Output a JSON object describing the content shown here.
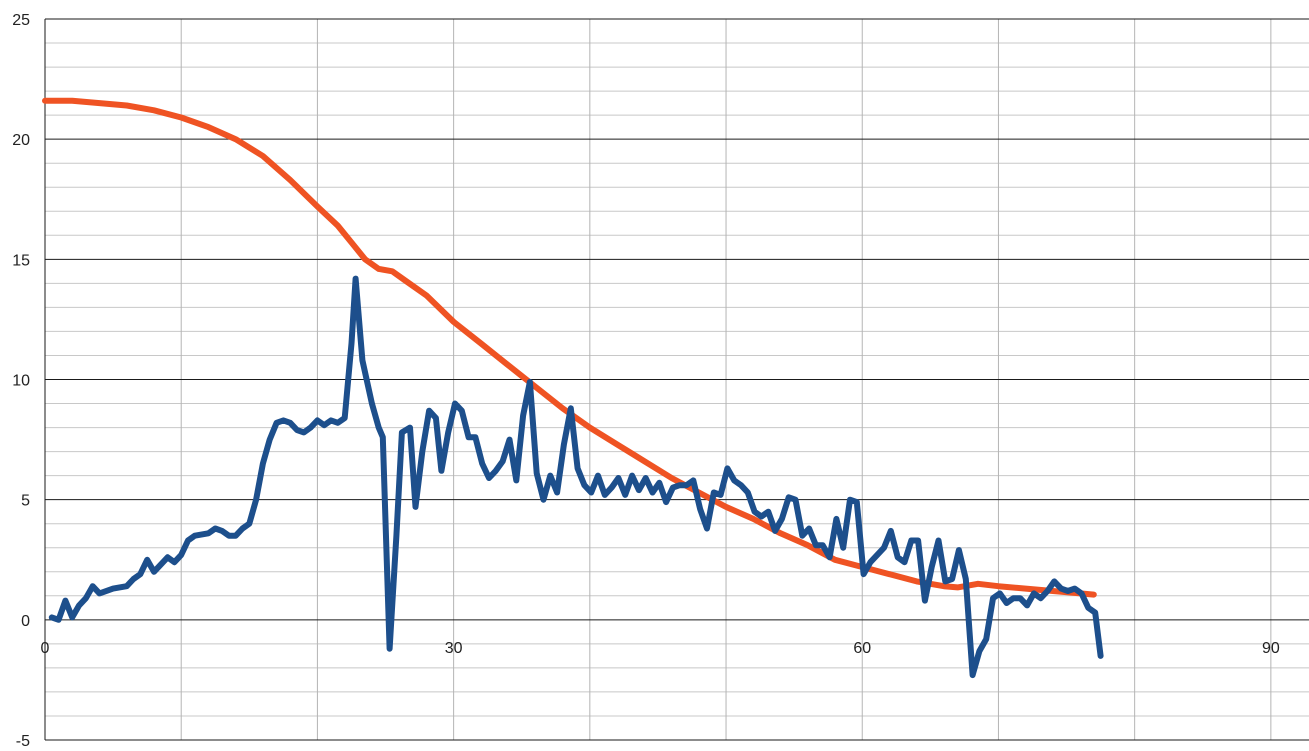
{
  "chart_data": {
    "type": "line",
    "title": "",
    "xlabel": "",
    "ylabel": "",
    "xlim": [
      0,
      92.8
    ],
    "ylim": [
      -5,
      25
    ],
    "x_ticks": [
      0,
      30,
      60,
      90
    ],
    "x_tick_labels": [
      "0",
      "30",
      "60",
      "90"
    ],
    "y_ticks": [
      -5,
      0,
      5,
      10,
      15,
      20,
      25
    ],
    "y_tick_labels": [
      "-5",
      "0",
      "5",
      "10",
      "15",
      "20",
      "25"
    ],
    "x_minor_step": 10,
    "y_minor_step": 1,
    "grid": true,
    "legend": "none",
    "series": [
      {
        "color": "#ef5323",
        "points": [
          [
            0,
            21.6
          ],
          [
            2,
            21.6
          ],
          [
            4,
            21.5
          ],
          [
            6,
            21.4
          ],
          [
            8,
            21.2
          ],
          [
            10,
            20.9
          ],
          [
            12,
            20.5
          ],
          [
            14,
            20.0
          ],
          [
            16,
            19.3
          ],
          [
            18,
            18.3
          ],
          [
            20,
            17.2
          ],
          [
            21.5,
            16.4
          ],
          [
            22.5,
            15.7
          ],
          [
            23.5,
            15.0
          ],
          [
            24.5,
            14.6
          ],
          [
            25.5,
            14.5
          ],
          [
            26.5,
            14.1
          ],
          [
            28,
            13.5
          ],
          [
            30,
            12.4
          ],
          [
            32,
            11.5
          ],
          [
            34,
            10.6
          ],
          [
            36,
            9.7
          ],
          [
            38,
            8.8
          ],
          [
            40,
            8.0
          ],
          [
            42,
            7.3
          ],
          [
            44,
            6.6
          ],
          [
            46,
            5.9
          ],
          [
            48,
            5.3
          ],
          [
            50,
            4.7
          ],
          [
            52,
            4.2
          ],
          [
            54,
            3.6
          ],
          [
            56,
            3.1
          ],
          [
            58,
            2.5
          ],
          [
            60,
            2.2
          ],
          [
            62,
            1.9
          ],
          [
            64,
            1.6
          ],
          [
            66,
            1.4
          ],
          [
            67,
            1.35
          ],
          [
            68.5,
            1.5
          ],
          [
            70,
            1.4
          ],
          [
            72,
            1.3
          ],
          [
            74,
            1.2
          ],
          [
            76,
            1.1
          ],
          [
            77,
            1.05
          ]
        ]
      },
      {
        "color": "#1d4f8c",
        "points": [
          [
            0.5,
            0.1
          ],
          [
            1,
            0
          ],
          [
            1.5,
            0.8
          ],
          [
            2,
            0.1
          ],
          [
            2.5,
            0.6
          ],
          [
            3,
            0.9
          ],
          [
            3.5,
            1.4
          ],
          [
            4,
            1.1
          ],
          [
            5,
            1.3
          ],
          [
            6,
            1.4
          ],
          [
            6.5,
            1.7
          ],
          [
            7,
            1.9
          ],
          [
            7.5,
            2.5
          ],
          [
            8,
            2.0
          ],
          [
            9,
            2.6
          ],
          [
            9.5,
            2.4
          ],
          [
            10,
            2.7
          ],
          [
            10.5,
            3.3
          ],
          [
            11,
            3.5
          ],
          [
            12,
            3.6
          ],
          [
            12.5,
            3.8
          ],
          [
            13,
            3.7
          ],
          [
            13.5,
            3.5
          ],
          [
            14,
            3.5
          ],
          [
            14.5,
            3.8
          ],
          [
            15,
            4.0
          ],
          [
            15.5,
            5.0
          ],
          [
            16,
            6.5
          ],
          [
            16.5,
            7.5
          ],
          [
            17,
            8.2
          ],
          [
            17.5,
            8.3
          ],
          [
            18,
            8.2
          ],
          [
            18.5,
            7.9
          ],
          [
            19,
            7.8
          ],
          [
            19.5,
            8.0
          ],
          [
            20,
            8.3
          ],
          [
            20.5,
            8.1
          ],
          [
            21,
            8.3
          ],
          [
            21.5,
            8.2
          ],
          [
            22,
            8.4
          ],
          [
            22.5,
            11.5
          ],
          [
            22.8,
            14.2
          ],
          [
            23.3,
            10.8
          ],
          [
            24,
            9.0
          ],
          [
            24.5,
            8.0
          ],
          [
            24.8,
            7.6
          ],
          [
            25.3,
            -1.2
          ],
          [
            25.8,
            3.5
          ],
          [
            26.2,
            7.8
          ],
          [
            26.8,
            8.0
          ],
          [
            27.2,
            4.7
          ],
          [
            27.7,
            7.0
          ],
          [
            28.2,
            8.7
          ],
          [
            28.7,
            8.4
          ],
          [
            29.1,
            6.2
          ],
          [
            29.6,
            7.8
          ],
          [
            30.1,
            9.0
          ],
          [
            30.6,
            8.7
          ],
          [
            31.1,
            7.6
          ],
          [
            31.6,
            7.6
          ],
          [
            32.1,
            6.5
          ],
          [
            32.6,
            5.9
          ],
          [
            33.1,
            6.2
          ],
          [
            33.6,
            6.6
          ],
          [
            34.1,
            7.5
          ],
          [
            34.6,
            5.8
          ],
          [
            35.1,
            8.5
          ],
          [
            35.6,
            9.9
          ],
          [
            36.1,
            6.1
          ],
          [
            36.6,
            5.0
          ],
          [
            37.1,
            6.0
          ],
          [
            37.6,
            5.3
          ],
          [
            38.1,
            7.3
          ],
          [
            38.6,
            8.8
          ],
          [
            39.1,
            6.3
          ],
          [
            39.6,
            5.6
          ],
          [
            40.1,
            5.3
          ],
          [
            40.6,
            6.0
          ],
          [
            41.1,
            5.2
          ],
          [
            41.6,
            5.5
          ],
          [
            42.1,
            5.9
          ],
          [
            42.6,
            5.2
          ],
          [
            43.1,
            6.0
          ],
          [
            43.6,
            5.4
          ],
          [
            44.1,
            5.9
          ],
          [
            44.6,
            5.3
          ],
          [
            45.1,
            5.7
          ],
          [
            45.6,
            4.9
          ],
          [
            46.1,
            5.5
          ],
          [
            46.6,
            5.6
          ],
          [
            47.1,
            5.6
          ],
          [
            47.6,
            5.8
          ],
          [
            48.1,
            4.6
          ],
          [
            48.6,
            3.8
          ],
          [
            49.1,
            5.3
          ],
          [
            49.6,
            5.2
          ],
          [
            50.1,
            6.3
          ],
          [
            50.6,
            5.8
          ],
          [
            51.1,
            5.6
          ],
          [
            51.6,
            5.3
          ],
          [
            52.1,
            4.5
          ],
          [
            52.6,
            4.3
          ],
          [
            53.1,
            4.5
          ],
          [
            53.6,
            3.7
          ],
          [
            54.1,
            4.2
          ],
          [
            54.6,
            5.1
          ],
          [
            55.1,
            5.0
          ],
          [
            55.6,
            3.5
          ],
          [
            56.1,
            3.8
          ],
          [
            56.6,
            3.1
          ],
          [
            57.1,
            3.1
          ],
          [
            57.6,
            2.6
          ],
          [
            58.1,
            4.2
          ],
          [
            58.6,
            3.0
          ],
          [
            59.1,
            5.0
          ],
          [
            59.6,
            4.9
          ],
          [
            60.1,
            1.9
          ],
          [
            60.6,
            2.4
          ],
          [
            61.1,
            2.7
          ],
          [
            61.6,
            3.0
          ],
          [
            62.1,
            3.7
          ],
          [
            62.6,
            2.6
          ],
          [
            63.1,
            2.4
          ],
          [
            63.6,
            3.3
          ],
          [
            64.1,
            3.3
          ],
          [
            64.6,
            0.8
          ],
          [
            65.1,
            2.2
          ],
          [
            65.6,
            3.3
          ],
          [
            66.1,
            1.6
          ],
          [
            66.6,
            1.7
          ],
          [
            67.1,
            2.9
          ],
          [
            67.6,
            1.7
          ],
          [
            68.1,
            -2.3
          ],
          [
            68.6,
            -1.3
          ],
          [
            69.1,
            -0.8
          ],
          [
            69.6,
            0.9
          ],
          [
            70.1,
            1.1
          ],
          [
            70.6,
            0.7
          ],
          [
            71.1,
            0.9
          ],
          [
            71.6,
            0.9
          ],
          [
            72.1,
            0.6
          ],
          [
            72.6,
            1.1
          ],
          [
            73.1,
            0.9
          ],
          [
            73.6,
            1.2
          ],
          [
            74.1,
            1.6
          ],
          [
            74.6,
            1.3
          ],
          [
            75.1,
            1.2
          ],
          [
            75.6,
            1.3
          ],
          [
            76.1,
            1.1
          ],
          [
            76.6,
            0.5
          ],
          [
            77.1,
            0.3
          ],
          [
            77.5,
            -1.5
          ]
        ]
      }
    ]
  }
}
